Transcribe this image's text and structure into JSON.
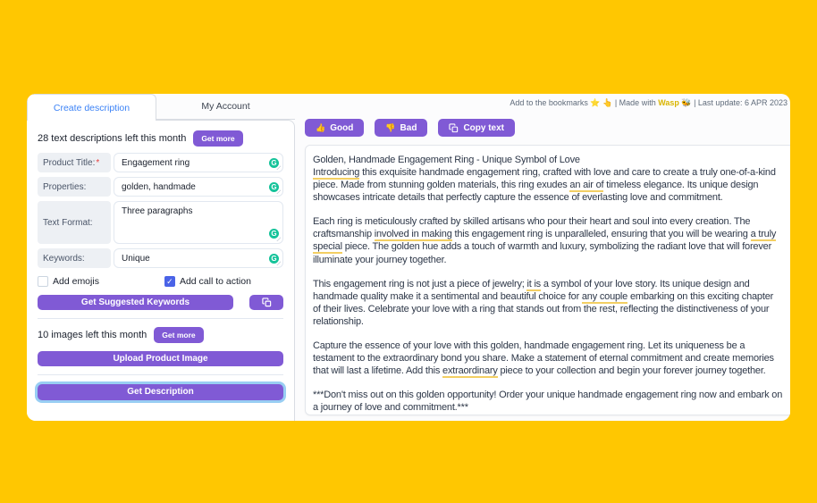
{
  "colors": {
    "background_yellow": "#FFC701",
    "accent_purple": "#805AD5",
    "tab_active_blue": "#3b82f6",
    "grammarly_green": "#15c39a",
    "underline_gold": "#f3cf63",
    "checkbox_blue": "#4a63e7",
    "wasp_gold": "#d9b500",
    "required_red": "#e53e3e"
  },
  "topnote": {
    "before": "Add to the bookmarks ⭐ 👆 | Made with ",
    "wasp_link": "Wasp",
    "after": " 🐝 | Last update: 6 APR 2023"
  },
  "tabs": [
    {
      "label": "Create description",
      "active": true
    },
    {
      "label": "My Account",
      "active": false
    }
  ],
  "form": {
    "text_quota": "28 text descriptions left this month",
    "get_more_text": "Get more",
    "fields": [
      {
        "label": "Product Title:",
        "required_mark": "*",
        "value": "Engagement ring"
      },
      {
        "label": "Properties:",
        "required_mark": "",
        "value": "golden, handmade"
      },
      {
        "label": "Text Format:",
        "required_mark": "",
        "value": "Three paragraphs"
      },
      {
        "label": "Keywords:",
        "required_mark": "",
        "value": "Unique"
      }
    ],
    "grammarly_badge": "G",
    "checkboxes": [
      {
        "label": "Add emojis",
        "checked": false
      },
      {
        "label": "Add call to action",
        "checked": true
      }
    ],
    "suggest_button": "Get Suggested Keywords",
    "image_quota": "10 images left this month",
    "get_more_image": "Get more",
    "upload_button": "Upload Product Image",
    "generate_button": "Get Description"
  },
  "feedback": {
    "good_icon": "👍",
    "good": "Good",
    "bad_icon": "👎",
    "bad": "Bad",
    "copy": "Copy text"
  },
  "description": {
    "title": "Golden, Handmade Engagement Ring - Unique Symbol of Love",
    "paragraphs": [
      "[[Introducing]] this exquisite handmade engagement ring, crafted with love and care to create a truly one-of-a-kind piece. Made from stunning golden materials, this ring exudes [[an air of]] timeless elegance. Its unique design showcases intricate details that perfectly capture the essence of everlasting love and commitment.",
      "Each ring is meticulously crafted by skilled artisans who pour their heart and soul into every creation. The craftsmanship [[involved in making]] this engagement ring is unparalleled, ensuring that you will be wearing [[a truly special]] piece. The golden hue adds a touch of warmth and luxury, symbolizing the radiant love that will forever illuminate your journey together.",
      "This engagement ring is not just a piece of jewelry; [[it is]] a symbol of your love story. Its unique design and handmade quality make it a sentimental and beautiful choice for [[any couple]] embarking on this exciting chapter of their lives. Celebrate your love with a ring that stands out from the rest, reflecting the distinctiveness of your relationship.",
      "Capture the essence of your love with this golden, handmade engagement ring. Let its uniqueness be a testament to the extraordinary bond you share. Make a statement of eternal commitment and create memories that will last a lifetime. Add this [[extraordinary]] piece to your collection and begin your forever journey together.",
      "***Don't miss out on this golden opportunity! Order your unique handmade engagement ring now and embark on a journey of love and commitment.***"
    ]
  }
}
